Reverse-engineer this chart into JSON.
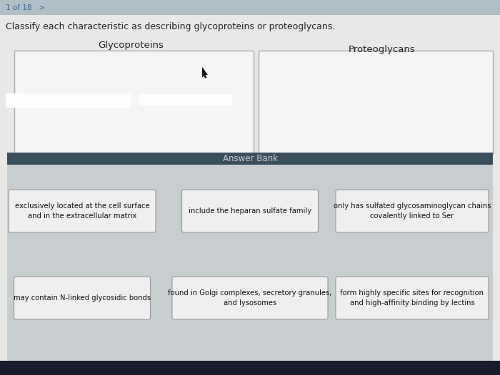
{
  "title_top": "1 of 18   >",
  "question": "Classify each characteristic as describing glycoproteins or proteoglycans.",
  "col1_header": "Glycoproteins",
  "col2_header": "Proteoglycans",
  "answer_bank_label": "Answer Bank",
  "answer_bank_bg": "#3a4f5c",
  "answer_bank_text_color": "#cccccc",
  "main_bg": "#dcdcdc",
  "content_bg": "#e8e8e8",
  "drop_box_bg": "#f2f2f2",
  "drop_box_border": "#aaaaaa",
  "answer_area_bg": "#c8cdd0",
  "answer_box_bg": "#efefef",
  "answer_box_border": "#999999",
  "answer_items_row1": [
    "exclusively located at the cell surface\nand in the extracellular matrix",
    "include the heparan sulfate family",
    "only has sulfated glycosaminoglycan chains\ncovalently linked to Ser"
  ],
  "answer_items_row2": [
    "may contain N-linked glycosidic bonds",
    "found in Golgi complexes, secretory granules,\nand lysosomes",
    "form highly specific sites for recognition\nand high-affinity binding by lectins"
  ],
  "nav_bar_bg": "#b8c8d0",
  "nav_text_color": "#336699",
  "question_text_color": "#222222",
  "header_text_color": "#222222",
  "bottom_bar_bg": "#1a1a2e",
  "fig_bg": "#c0c0c0"
}
